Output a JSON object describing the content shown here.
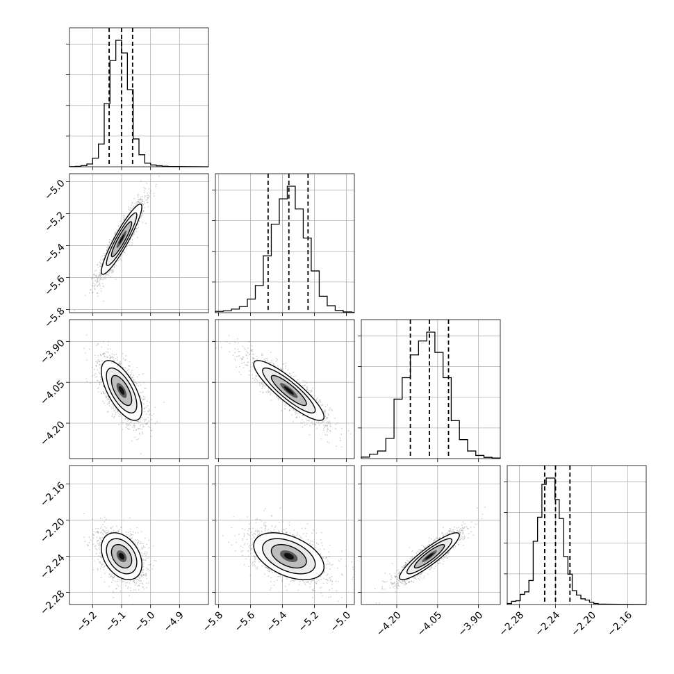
{
  "chart_data": {
    "type": "corner",
    "description_free": true,
    "parameters": [
      {
        "range": [
          -5.28,
          -4.8
        ],
        "ticks": [
          -5.2,
          -5.1,
          -5.0,
          -4.9
        ],
        "tick_labels": [
          "−5.2",
          "−5.1",
          "−5.0",
          "−4.9"
        ],
        "quantiles": [
          -5.143,
          -5.1,
          -5.062
        ]
      },
      {
        "range": [
          -5.82,
          -4.95
        ],
        "ticks": [
          -5.8,
          -5.6,
          -5.4,
          -5.2,
          -5.0
        ],
        "tick_labels": [
          "−5.8",
          "−5.6",
          "−5.4",
          "−5.2",
          "−5.0"
        ],
        "quantiles": [
          -5.49,
          -5.36,
          -5.24
        ]
      },
      {
        "range": [
          -4.33,
          -3.82
        ],
        "ticks": [
          -4.2,
          -4.05,
          -3.9
        ],
        "tick_labels": [
          "−4.20",
          "−4.05",
          "−3.90"
        ],
        "quantiles": [
          -4.15,
          -4.08,
          -4.01
        ]
      },
      {
        "range": [
          -2.2935,
          -2.1395
        ],
        "ticks": [
          -2.28,
          -2.24,
          -2.2,
          -2.16
        ],
        "tick_labels": [
          "−2.28",
          "−2.24",
          "−2.20",
          "−2.16"
        ],
        "quantiles": [
          -2.252,
          -2.24,
          -2.224
        ]
      }
    ],
    "histograms": [
      {
        "param": 0,
        "bin_edges": [
          -5.28,
          -5.26,
          -5.24,
          -5.22,
          -5.2,
          -5.18,
          -5.16,
          -5.14,
          -5.12,
          -5.1,
          -5.08,
          -5.06,
          -5.04,
          -5.02,
          -5.0,
          -4.98,
          -4.96,
          -4.94,
          -4.92
        ],
        "counts": [
          1,
          3,
          9,
          22,
          68,
          180,
          500,
          840,
          1000,
          900,
          610,
          220,
          95,
          28,
          14,
          8,
          4,
          2
        ]
      },
      {
        "param": 1,
        "bin_edges": [
          -5.82,
          -5.77,
          -5.72,
          -5.67,
          -5.62,
          -5.57,
          -5.52,
          -5.47,
          -5.42,
          -5.37,
          -5.32,
          -5.27,
          -5.22,
          -5.17,
          -5.12,
          -5.07,
          -5.02,
          -4.97
        ],
        "counts": [
          10,
          15,
          28,
          48,
          108,
          215,
          450,
          700,
          900,
          1000,
          820,
          590,
          330,
          130,
          55,
          18,
          6
        ]
      },
      {
        "param": 2,
        "bin_edges": [
          -4.33,
          -4.3,
          -4.27,
          -4.24,
          -4.21,
          -4.18,
          -4.15,
          -4.12,
          -4.09,
          -4.06,
          -4.03,
          -4.0,
          -3.97,
          -3.94,
          -3.91,
          -3.88,
          -3.85,
          -3.82
        ],
        "counts": [
          12,
          35,
          60,
          160,
          470,
          640,
          820,
          930,
          1000,
          840,
          640,
          300,
          150,
          60,
          25,
          10,
          5
        ]
      },
      {
        "param": 3,
        "bin_edges": [
          -2.2935,
          -2.2887,
          -2.2839,
          -2.2791,
          -2.2743,
          -2.2695,
          -2.2647,
          -2.2599,
          -2.2551,
          -2.2503,
          -2.2455,
          -2.2407,
          -2.2359,
          -2.2311,
          -2.2263,
          -2.2215,
          -2.2167,
          -2.2119,
          -2.2071,
          -2.2023,
          -2.1975,
          -2.1927,
          -2.1879
        ],
        "counts": [
          8,
          25,
          30,
          80,
          100,
          190,
          500,
          690,
          950,
          1000,
          1000,
          830,
          680,
          380,
          240,
          110,
          75,
          45,
          35,
          18,
          8,
          3
        ]
      }
    ],
    "pair_panels": [
      {
        "x_param": 0,
        "y_param": 1,
        "mean": [
          -5.1,
          -5.36
        ],
        "sd": [
          0.035,
          0.11
        ],
        "corr": 0.92
      },
      {
        "x_param": 0,
        "y_param": 2,
        "mean": [
          -5.1,
          -4.08
        ],
        "sd": [
          0.035,
          0.055
        ],
        "corr": -0.65
      },
      {
        "x_param": 1,
        "y_param": 2,
        "mean": [
          -5.36,
          -4.08
        ],
        "sd": [
          0.11,
          0.055
        ],
        "corr": -0.88
      },
      {
        "x_param": 0,
        "y_param": 3,
        "mean": [
          -5.1,
          -2.24
        ],
        "sd": [
          0.035,
          0.013
        ],
        "corr": -0.35
      },
      {
        "x_param": 1,
        "y_param": 3,
        "mean": [
          -5.36,
          -2.24
        ],
        "sd": [
          0.11,
          0.013
        ],
        "corr": -0.45
      },
      {
        "x_param": 2,
        "y_param": 3,
        "mean": [
          -4.08,
          -2.24
        ],
        "sd": [
          0.055,
          0.013
        ],
        "corr": 0.9
      }
    ],
    "contour_levels_sigma": [
      0.5,
      1.0,
      1.5,
      2.0
    ],
    "grid": true,
    "xlabel": "",
    "ylabel": "",
    "title": ""
  }
}
